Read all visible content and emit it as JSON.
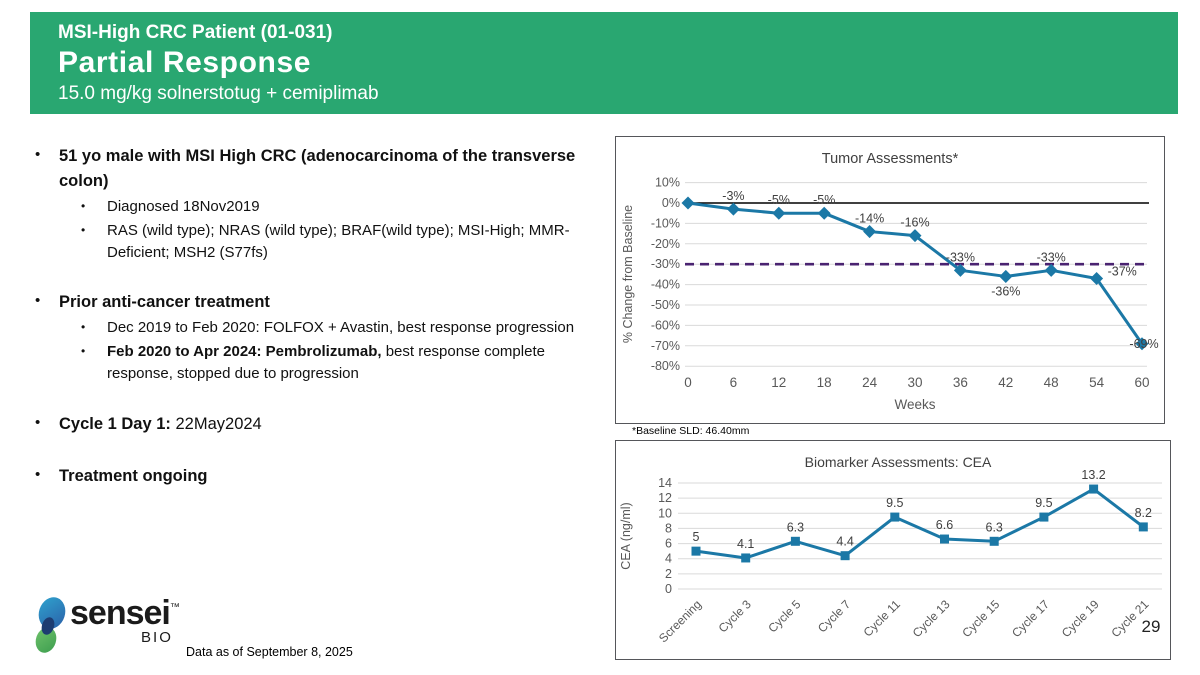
{
  "header": {
    "kicker": "MSI-High CRC Patient (01-031)",
    "title": "Partial Response",
    "subtitle": "15.0 mg/kg solnerstotug + cemiplimab",
    "background_color": "#29A771"
  },
  "left_panel": {
    "bullets": [
      {
        "level": 1,
        "parts": [
          {
            "text": "51 yo male with MSI High CRC (adenocarcinoma of the transverse colon)",
            "bold": true
          }
        ]
      },
      {
        "level": 2,
        "parts": [
          {
            "text": "Diagnosed 18Nov2019",
            "bold": false
          }
        ]
      },
      {
        "level": 2,
        "parts": [
          {
            "text": "RAS (wild type); NRAS (wild type); BRAF(wild type); MSI-High; MMR-Deficient; MSH2 (S77fs)",
            "bold": false
          }
        ]
      },
      {
        "level": 1,
        "parts": [
          {
            "text": "Prior anti-cancer treatment",
            "bold": true
          }
        ]
      },
      {
        "level": 2,
        "parts": [
          {
            "text": "Dec 2019 to Feb 2020: FOLFOX + Avastin, best response progression",
            "bold": false
          }
        ]
      },
      {
        "level": 2,
        "parts": [
          {
            "text": "Feb 2020 to Apr 2024: Pembrolizumab,",
            "bold": true
          },
          {
            "text": " best response complete response, stopped due to progression",
            "bold": false
          }
        ]
      },
      {
        "level": 1,
        "parts": [
          {
            "text": "Cycle 1 Day 1:",
            "bold": true
          },
          {
            "text": " 22May2024",
            "bold": false
          }
        ]
      },
      {
        "level": 1,
        "parts": [
          {
            "text": "Treatment ongoing",
            "bold": true
          }
        ]
      }
    ]
  },
  "footnote": "*Baseline SLD: 46.40mm",
  "chart_data": [
    {
      "type": "line",
      "title": "Tumor Assessments*",
      "xlabel": "Weeks",
      "ylabel": "% Change from Baseline",
      "x": [
        0,
        6,
        12,
        18,
        24,
        30,
        36,
        42,
        48,
        54,
        60
      ],
      "values": [
        0,
        -3,
        -5,
        -5,
        -14,
        -16,
        -33,
        -36,
        -33,
        -37,
        -69
      ],
      "point_labels": [
        "",
        "-3%",
        "-5%",
        "-5%",
        "-14%",
        "-16%",
        "-33%",
        "-36%",
        "-33%",
        "-37%",
        "-69%"
      ],
      "label_pos": [
        "none",
        "above",
        "above",
        "above",
        "above",
        "above",
        "above",
        "below",
        "above",
        "right",
        "center"
      ],
      "yticks": [
        "10%",
        "0%",
        "-10%",
        "-20%",
        "-30%",
        "-40%",
        "-50%",
        "-60%",
        "-70%",
        "-80%"
      ],
      "ylim": [
        -80,
        10
      ],
      "grid": true,
      "legend": "none",
      "line_color": "#1B78A6",
      "marker": "diamond",
      "ref_lines": [
        {
          "y": 0,
          "style": "solid",
          "color": "#000000"
        },
        {
          "y": -30,
          "style": "dashed",
          "color": "#4A2371"
        }
      ]
    },
    {
      "type": "line",
      "title": "Biomarker Assessments: CEA",
      "xlabel": "",
      "ylabel": "CEA (ng/ml)",
      "categories": [
        "Screening",
        "Cycle 3",
        "Cycle 5",
        "Cycle 7",
        "Cycle 11",
        "Cycle 13",
        "Cycle 15",
        "Cycle 17",
        "Cycle 19",
        "Cycle 21"
      ],
      "values": [
        5,
        4.1,
        6.3,
        4.4,
        9.5,
        6.6,
        6.3,
        9.5,
        13.2,
        8.2
      ],
      "point_labels": [
        "5",
        "4.1",
        "6.3",
        "4.4",
        "9.5",
        "6.6",
        "6.3",
        "9.5",
        "13.2",
        "8.2"
      ],
      "yticks": [
        0,
        2,
        4,
        6,
        8,
        10,
        12,
        14
      ],
      "ylim": [
        0,
        14
      ],
      "grid": true,
      "legend": "none",
      "line_color": "#1B78A6",
      "marker": "square"
    }
  ],
  "footer": {
    "brand": "sensei",
    "brand_tm": "™",
    "brand_sub": "BIO",
    "data_as_of": "Data as of September 8, 2025",
    "page_number": "29"
  }
}
